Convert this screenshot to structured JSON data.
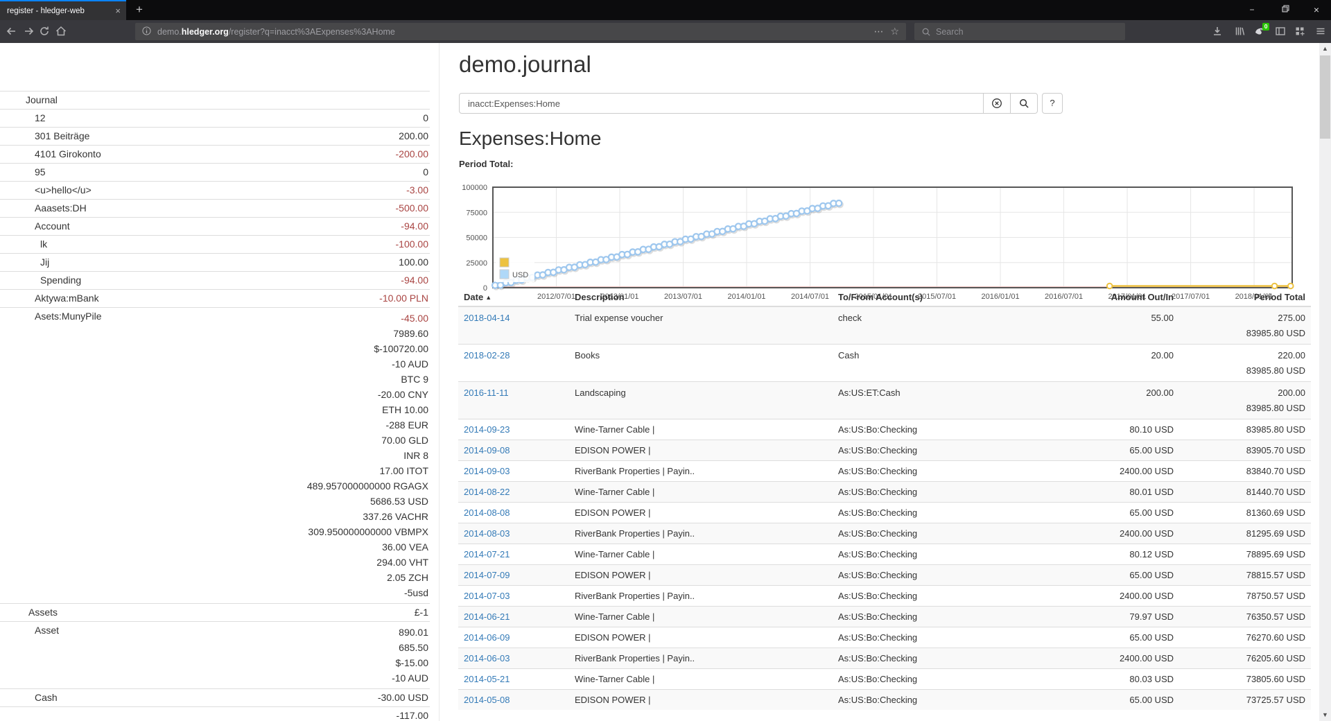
{
  "browser": {
    "tab_title": "register - hledger-web",
    "new_tab_glyph": "+",
    "close_glyph": "×",
    "url": {
      "prefix": "demo.",
      "domain": "hledger.org",
      "path": "/register?q=inacct%3AExpenses%3AHome"
    },
    "search_placeholder": "Search",
    "extension_badge": "0",
    "window": {
      "minimize": "−",
      "close": "×"
    }
  },
  "scrollbar": {
    "up_glyph": "▲",
    "down_glyph": "▼"
  },
  "sidebar": {
    "heading": "Journal",
    "accounts": [
      {
        "name": "12",
        "depth": 1,
        "amounts": [
          {
            "text": "0",
            "neg": false
          }
        ]
      },
      {
        "name": "301 Beiträge",
        "depth": 1,
        "amounts": [
          {
            "text": "200.00",
            "neg": false
          }
        ]
      },
      {
        "name": "4101 Girokonto",
        "depth": 1,
        "amounts": [
          {
            "text": "-200.00",
            "neg": true
          }
        ]
      },
      {
        "name": "95",
        "depth": 1,
        "amounts": [
          {
            "text": "0",
            "neg": false
          }
        ]
      },
      {
        "name": "<u>hello</u>",
        "depth": 1,
        "amounts": [
          {
            "text": "-3.00",
            "neg": true
          }
        ]
      },
      {
        "name": "Aaasets:DH",
        "depth": 1,
        "amounts": [
          {
            "text": "-500.00",
            "neg": true
          }
        ]
      },
      {
        "name": "Account",
        "depth": 1,
        "amounts": [
          {
            "text": "-94.00",
            "neg": true
          }
        ]
      },
      {
        "name": "lk",
        "depth": 2,
        "amounts": [
          {
            "text": "-100.00",
            "neg": true
          }
        ]
      },
      {
        "name": "Jij",
        "depth": 2,
        "amounts": [
          {
            "text": "100.00",
            "neg": false
          }
        ]
      },
      {
        "name": "Spending",
        "depth": 2,
        "amounts": [
          {
            "text": "-94.00",
            "neg": true
          }
        ]
      },
      {
        "name": "Aktywa:mBank",
        "depth": 1,
        "amounts": [
          {
            "text": "-10.00 PLN",
            "neg": true
          }
        ]
      },
      {
        "name": "Asets:MunyPile",
        "depth": 1,
        "amounts": [
          {
            "text": "-45.00",
            "neg": true
          },
          {
            "text": "7989.60",
            "neg": false
          },
          {
            "text": "$-100720.00",
            "neg": false
          },
          {
            "text": "-10 AUD",
            "neg": false
          },
          {
            "text": "BTC 9",
            "neg": false
          },
          {
            "text": "-20.00 CNY",
            "neg": false
          },
          {
            "text": "ETH 10.00",
            "neg": false
          },
          {
            "text": "-288 EUR",
            "neg": false
          },
          {
            "text": "70.00 GLD",
            "neg": false
          },
          {
            "text": "INR 8",
            "neg": false
          },
          {
            "text": "17.00 ITOT",
            "neg": false
          },
          {
            "text": "489.957000000000 RGAGX",
            "neg": false
          },
          {
            "text": "5686.53 USD",
            "neg": false
          },
          {
            "text": "337.26 VACHR",
            "neg": false
          },
          {
            "text": "309.950000000000 VBMPX",
            "neg": false
          },
          {
            "text": "36.00 VEA",
            "neg": false
          },
          {
            "text": "294.00 VHT",
            "neg": false
          },
          {
            "text": "2.05 ZCH",
            "neg": false
          },
          {
            "text": "-5usd",
            "neg": false
          }
        ]
      },
      {
        "name": "Assets",
        "depth": 0,
        "amounts": [
          {
            "text": "£-1",
            "neg": false
          }
        ]
      },
      {
        "name": "Asset",
        "depth": 1,
        "amounts": [
          {
            "text": "890.01",
            "neg": false
          },
          {
            "text": "685.50",
            "neg": false
          },
          {
            "text": "$-15.00",
            "neg": false
          },
          {
            "text": "-10 AUD",
            "neg": false
          }
        ]
      },
      {
        "name": "Cash",
        "depth": 1,
        "amounts": [
          {
            "text": "-30.00 USD",
            "neg": false
          }
        ]
      },
      {
        "name": "",
        "depth": 1,
        "amounts": [
          {
            "text": "-117.00",
            "neg": false
          }
        ]
      }
    ]
  },
  "main": {
    "title": "demo.journal",
    "query_value": "inacct:Expenses:Home",
    "help_label": "?",
    "account_heading": "Expenses:Home",
    "period_total_label": "Period Total:"
  },
  "register": {
    "columns": [
      {
        "label": "Date",
        "sorted": "asc"
      },
      {
        "label": "Description"
      },
      {
        "label": "To/From Account(s)"
      },
      {
        "label": "Amount Out/In",
        "align": "right"
      },
      {
        "label": "Period Total",
        "align": "right"
      }
    ],
    "sort_caret": "▲",
    "rows": [
      {
        "date": "2018-04-14",
        "description": "Trial expense voucher",
        "account": "check",
        "amount": "55.00",
        "period_totals": [
          "275.00",
          "83985.80 USD"
        ]
      },
      {
        "date": "2018-02-28",
        "description": "Books",
        "account": "Cash",
        "amount": "20.00",
        "period_totals": [
          "220.00",
          "83985.80 USD"
        ]
      },
      {
        "date": "2016-11-11",
        "description": "Landscaping",
        "account": "As:US:ET:Cash",
        "amount": "200.00",
        "period_totals": [
          "200.00",
          "83985.80 USD"
        ]
      },
      {
        "date": "2014-09-23",
        "description": "Wine-Tarner Cable |",
        "account": "As:US:Bo:Checking",
        "amount": "80.10 USD",
        "period_totals": [
          "83985.80 USD"
        ]
      },
      {
        "date": "2014-09-08",
        "description": "EDISON POWER |",
        "account": "As:US:Bo:Checking",
        "amount": "65.00 USD",
        "period_totals": [
          "83905.70 USD"
        ]
      },
      {
        "date": "2014-09-03",
        "description": "RiverBank Properties | Payin..",
        "account": "As:US:Bo:Checking",
        "amount": "2400.00 USD",
        "period_totals": [
          "83840.70 USD"
        ]
      },
      {
        "date": "2014-08-22",
        "description": "Wine-Tarner Cable |",
        "account": "As:US:Bo:Checking",
        "amount": "80.01 USD",
        "period_totals": [
          "81440.70 USD"
        ]
      },
      {
        "date": "2014-08-08",
        "description": "EDISON POWER |",
        "account": "As:US:Bo:Checking",
        "amount": "65.00 USD",
        "period_totals": [
          "81360.69 USD"
        ]
      },
      {
        "date": "2014-08-03",
        "description": "RiverBank Properties | Payin..",
        "account": "As:US:Bo:Checking",
        "amount": "2400.00 USD",
        "period_totals": [
          "81295.69 USD"
        ]
      },
      {
        "date": "2014-07-21",
        "description": "Wine-Tarner Cable |",
        "account": "As:US:Bo:Checking",
        "amount": "80.12 USD",
        "period_totals": [
          "78895.69 USD"
        ]
      },
      {
        "date": "2014-07-09",
        "description": "EDISON POWER |",
        "account": "As:US:Bo:Checking",
        "amount": "65.00 USD",
        "period_totals": [
          "78815.57 USD"
        ]
      },
      {
        "date": "2014-07-03",
        "description": "RiverBank Properties | Payin..",
        "account": "As:US:Bo:Checking",
        "amount": "2400.00 USD",
        "period_totals": [
          "78750.57 USD"
        ]
      },
      {
        "date": "2014-06-21",
        "description": "Wine-Tarner Cable |",
        "account": "As:US:Bo:Checking",
        "amount": "79.97 USD",
        "period_totals": [
          "76350.57 USD"
        ]
      },
      {
        "date": "2014-06-09",
        "description": "EDISON POWER |",
        "account": "As:US:Bo:Checking",
        "amount": "65.00 USD",
        "period_totals": [
          "76270.60 USD"
        ]
      },
      {
        "date": "2014-06-03",
        "description": "RiverBank Properties | Payin..",
        "account": "As:US:Bo:Checking",
        "amount": "2400.00 USD",
        "period_totals": [
          "76205.60 USD"
        ]
      },
      {
        "date": "2014-05-21",
        "description": "Wine-Tarner Cable |",
        "account": "As:US:Bo:Checking",
        "amount": "80.03 USD",
        "period_totals": [
          "73805.60 USD"
        ]
      },
      {
        "date": "2014-05-08",
        "description": "EDISON POWER |",
        "account": "As:US:Bo:Checking",
        "amount": "65.00 USD",
        "period_totals": [
          "73725.57 USD"
        ]
      }
    ]
  },
  "chart_data": {
    "type": "scatter",
    "title": "Period Total:",
    "x_axis": {
      "min": 2012.0,
      "max": 2018.3,
      "ticks": [
        {
          "t": 2012.5,
          "label": "2012/07/01"
        },
        {
          "t": 2013.0,
          "label": "2013/01/01"
        },
        {
          "t": 2013.5,
          "label": "2013/07/01"
        },
        {
          "t": 2014.0,
          "label": "2014/01/01"
        },
        {
          "t": 2014.5,
          "label": "2014/07/01"
        },
        {
          "t": 2015.0,
          "label": "2015/01/01"
        },
        {
          "t": 2015.5,
          "label": "2015/07/01"
        },
        {
          "t": 2016.0,
          "label": "2016/01/01"
        },
        {
          "t": 2016.5,
          "label": "2016/07/01"
        },
        {
          "t": 2017.0,
          "label": "2017/01/01"
        },
        {
          "t": 2017.5,
          "label": "2017/07/01"
        },
        {
          "t": 2018.0,
          "label": "2018/01/01"
        }
      ]
    },
    "y_axis": {
      "min": 0,
      "max": 100000,
      "ticks": [
        {
          "v": 0,
          "label": "0"
        },
        {
          "v": 25000,
          "label": "25000"
        },
        {
          "v": 50000,
          "label": "50000"
        },
        {
          "v": 75000,
          "label": "75000"
        },
        {
          "v": 100000,
          "label": "100000"
        }
      ]
    },
    "legend": [
      {
        "label": "",
        "color": "#edc240"
      },
      {
        "label": "USD",
        "color": "#afd8f8"
      }
    ],
    "series": [
      {
        "name": "",
        "style": "line-markers",
        "color": "#edc240",
        "points": [
          [
            2016.861,
            200
          ],
          [
            2018.161,
            220
          ],
          [
            2018.288,
            275
          ]
        ]
      },
      {
        "name": "USD",
        "style": "points",
        "color": "#afd8f8",
        "points": [
          [
            2012.018,
            2400
          ],
          [
            2012.06,
            2545
          ],
          [
            2012.102,
            4945
          ],
          [
            2012.143,
            5090
          ],
          [
            2012.185,
            7490
          ],
          [
            2012.227,
            7635
          ],
          [
            2012.268,
            10035
          ],
          [
            2012.31,
            10180
          ],
          [
            2012.352,
            12580
          ],
          [
            2012.393,
            12726
          ],
          [
            2012.435,
            15126
          ],
          [
            2012.477,
            15271
          ],
          [
            2012.518,
            17671
          ],
          [
            2012.56,
            17816
          ],
          [
            2012.602,
            20216
          ],
          [
            2012.643,
            20361
          ],
          [
            2012.685,
            22761
          ],
          [
            2012.727,
            22906
          ],
          [
            2012.768,
            25306
          ],
          [
            2012.81,
            25451
          ],
          [
            2012.852,
            27851
          ],
          [
            2012.893,
            27996
          ],
          [
            2012.935,
            30396
          ],
          [
            2012.977,
            30541
          ],
          [
            2013.018,
            32941
          ],
          [
            2013.06,
            33086
          ],
          [
            2013.102,
            35486
          ],
          [
            2013.143,
            35631
          ],
          [
            2013.185,
            38031
          ],
          [
            2013.227,
            38177
          ],
          [
            2013.268,
            40577
          ],
          [
            2013.31,
            40722
          ],
          [
            2013.352,
            43122
          ],
          [
            2013.393,
            43267
          ],
          [
            2013.435,
            45667
          ],
          [
            2013.477,
            45812
          ],
          [
            2013.518,
            48212
          ],
          [
            2013.56,
            48357
          ],
          [
            2013.602,
            50757
          ],
          [
            2013.643,
            50902
          ],
          [
            2013.685,
            53302
          ],
          [
            2013.727,
            53447
          ],
          [
            2013.768,
            55847
          ],
          [
            2013.81,
            55992
          ],
          [
            2013.852,
            58392
          ],
          [
            2013.893,
            58538
          ],
          [
            2013.935,
            60938
          ],
          [
            2013.977,
            61083
          ],
          [
            2014.018,
            63483
          ],
          [
            2014.06,
            63628
          ],
          [
            2014.102,
            66028
          ],
          [
            2014.143,
            66173
          ],
          [
            2014.185,
            68573
          ],
          [
            2014.227,
            68718
          ],
          [
            2014.268,
            71118
          ],
          [
            2014.31,
            71263
          ],
          [
            2014.352,
            73663
          ],
          [
            2014.393,
            73809
          ],
          [
            2014.435,
            76209
          ],
          [
            2014.477,
            76354
          ],
          [
            2014.518,
            78754
          ],
          [
            2014.56,
            78899
          ],
          [
            2014.602,
            81299
          ],
          [
            2014.643,
            81444
          ],
          [
            2014.685,
            83844
          ],
          [
            2014.727,
            83990
          ]
        ]
      }
    ]
  }
}
